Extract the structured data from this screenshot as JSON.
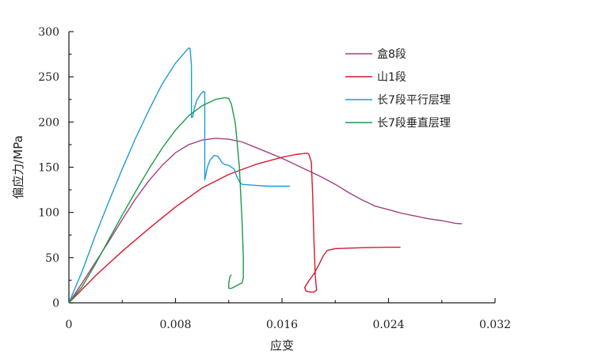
{
  "chart_data": {
    "type": "line",
    "title": "",
    "xlabel": "应变",
    "ylabel": "偏应力/MPa",
    "xlim": [
      0,
      0.032
    ],
    "ylim": [
      0,
      300
    ],
    "x_ticks": [
      "0",
      "0.008",
      "0.016",
      "0.024",
      "0.032"
    ],
    "y_ticks": [
      "0",
      "50",
      "100",
      "150",
      "200",
      "250",
      "300"
    ],
    "x_tick_values": [
      0,
      0.008,
      0.016,
      0.024,
      0.032
    ],
    "y_tick_values": [
      0,
      50,
      100,
      150,
      200,
      250,
      300
    ],
    "grid": false,
    "legend_position": "top-right",
    "series": [
      {
        "name": "盒8段",
        "color": "#a3407f",
        "points": [
          [
            0,
            0
          ],
          [
            0.001,
            22
          ],
          [
            0.002,
            45
          ],
          [
            0.003,
            68
          ],
          [
            0.004,
            92
          ],
          [
            0.005,
            115
          ],
          [
            0.006,
            135
          ],
          [
            0.007,
            152
          ],
          [
            0.008,
            166
          ],
          [
            0.009,
            175
          ],
          [
            0.01,
            180
          ],
          [
            0.011,
            182
          ],
          [
            0.012,
            181
          ],
          [
            0.013,
            178
          ],
          [
            0.014,
            172
          ],
          [
            0.015,
            166
          ],
          [
            0.016,
            160
          ],
          [
            0.017,
            153
          ],
          [
            0.018,
            146
          ],
          [
            0.019,
            139
          ],
          [
            0.02,
            131
          ],
          [
            0.021,
            122
          ],
          [
            0.022,
            114
          ],
          [
            0.023,
            107
          ],
          [
            0.024,
            103
          ],
          [
            0.025,
            99
          ],
          [
            0.026,
            96
          ],
          [
            0.027,
            93
          ],
          [
            0.028,
            91
          ],
          [
            0.029,
            88
          ],
          [
            0.0295,
            87.5
          ]
        ]
      },
      {
        "name": "山1段",
        "color": "#d7192e",
        "points": [
          [
            0,
            0
          ],
          [
            0.002,
            30
          ],
          [
            0.004,
            57
          ],
          [
            0.006,
            82
          ],
          [
            0.008,
            106
          ],
          [
            0.01,
            127
          ],
          [
            0.012,
            142
          ],
          [
            0.014,
            153
          ],
          [
            0.016,
            161
          ],
          [
            0.017,
            164
          ],
          [
            0.0178,
            165.5
          ],
          [
            0.018,
            165
          ],
          [
            0.0182,
            156
          ],
          [
            0.0183,
            120
          ],
          [
            0.0184,
            70
          ],
          [
            0.0185,
            30
          ],
          [
            0.0186,
            14
          ],
          [
            0.0184,
            12
          ],
          [
            0.0181,
            12
          ],
          [
            0.0178,
            13
          ],
          [
            0.0177,
            17
          ],
          [
            0.018,
            24
          ],
          [
            0.0184,
            32
          ],
          [
            0.0188,
            43
          ],
          [
            0.0191,
            52
          ],
          [
            0.0194,
            58
          ],
          [
            0.02,
            60
          ],
          [
            0.022,
            61
          ],
          [
            0.024,
            61.5
          ],
          [
            0.0249,
            61.5
          ]
        ]
      },
      {
        "name": "长7段平行层理",
        "color": "#1f9cd6",
        "points": [
          [
            0,
            0
          ],
          [
            0.001,
            35
          ],
          [
            0.002,
            75
          ],
          [
            0.003,
            112
          ],
          [
            0.004,
            148
          ],
          [
            0.005,
            182
          ],
          [
            0.006,
            213
          ],
          [
            0.007,
            242
          ],
          [
            0.008,
            265
          ],
          [
            0.0087,
            277
          ],
          [
            0.009,
            282
          ],
          [
            0.0091,
            281
          ],
          [
            0.0092,
            262
          ],
          [
            0.0092,
            235
          ],
          [
            0.0092,
            205
          ],
          [
            0.0093,
            206
          ],
          [
            0.0094,
            214
          ],
          [
            0.0096,
            224
          ],
          [
            0.0099,
            231
          ],
          [
            0.0101,
            234
          ],
          [
            0.0102,
            233
          ],
          [
            0.0102,
            205
          ],
          [
            0.0102,
            165
          ],
          [
            0.0102,
            140
          ],
          [
            0.0102,
            136
          ],
          [
            0.0103,
            143
          ],
          [
            0.0104,
            150
          ],
          [
            0.0106,
            158
          ],
          [
            0.0109,
            163
          ],
          [
            0.0112,
            162
          ],
          [
            0.0115,
            155
          ],
          [
            0.0117,
            153
          ],
          [
            0.012,
            152
          ],
          [
            0.0124,
            148
          ],
          [
            0.0126,
            140
          ],
          [
            0.0128,
            134
          ],
          [
            0.013,
            131
          ],
          [
            0.014,
            130
          ],
          [
            0.015,
            129
          ],
          [
            0.0166,
            129
          ]
        ]
      },
      {
        "name": "长7段垂直层理",
        "color": "#1e9a47",
        "points": [
          [
            0,
            0
          ],
          [
            0.001,
            18
          ],
          [
            0.002,
            43
          ],
          [
            0.003,
            70
          ],
          [
            0.004,
            97
          ],
          [
            0.005,
            123
          ],
          [
            0.006,
            148
          ],
          [
            0.007,
            171
          ],
          [
            0.008,
            191
          ],
          [
            0.009,
            207
          ],
          [
            0.01,
            218
          ],
          [
            0.011,
            225
          ],
          [
            0.0117,
            227
          ],
          [
            0.012,
            226
          ],
          [
            0.0122,
            220
          ],
          [
            0.0125,
            198
          ],
          [
            0.0128,
            150
          ],
          [
            0.013,
            90
          ],
          [
            0.0131,
            50
          ],
          [
            0.0131,
            28
          ],
          [
            0.013,
            22
          ],
          [
            0.0126,
            19
          ],
          [
            0.0122,
            16
          ],
          [
            0.012,
            16
          ],
          [
            0.012,
            22
          ],
          [
            0.0121,
            29
          ],
          [
            0.0122,
            31
          ]
        ]
      }
    ]
  }
}
